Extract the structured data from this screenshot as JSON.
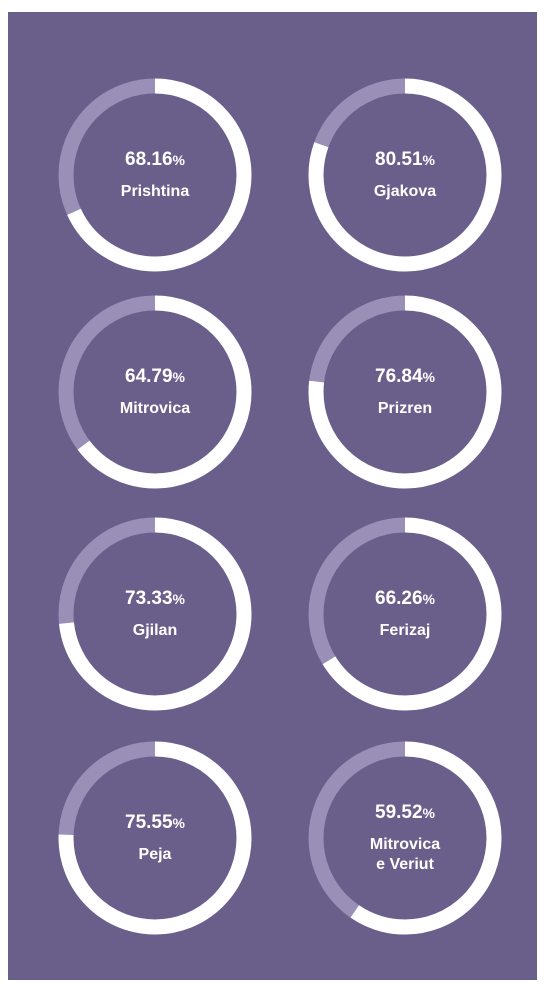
{
  "chart_data": {
    "type": "donut",
    "categories": [
      "Prishtina",
      "Gjakova",
      "Mitrovica",
      "Prizren",
      "Gjilan",
      "Ferizaj",
      "Peja",
      "Mitrovica e Veriut"
    ],
    "values": [
      68.16,
      80.51,
      64.79,
      76.84,
      73.33,
      66.26,
      75.55,
      59.52
    ],
    "unit": "%",
    "range": [
      0,
      100
    ],
    "color": "#ffffff",
    "track_color": "#9a8fb7",
    "background": "#6a5e8b"
  }
}
